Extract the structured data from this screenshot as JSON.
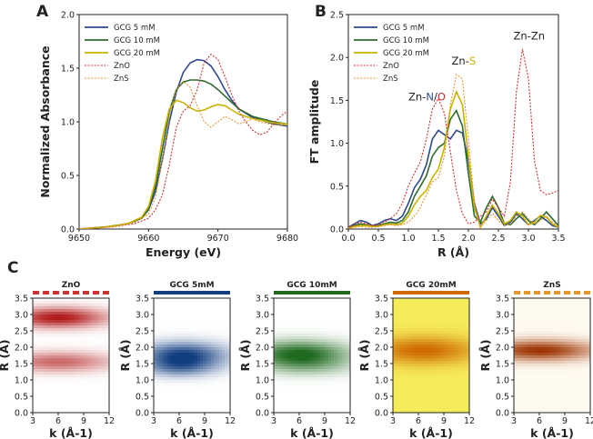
{
  "panels": {
    "a": "A",
    "b": "B",
    "c": "C"
  },
  "colors": {
    "gcg5": "#2c4a8c",
    "gcg10": "#2e6b2e",
    "gcg20": "#c9b300",
    "zno": "#d03030",
    "zns": "#e8962e"
  },
  "chart_data": [
    {
      "type": "line",
      "id": "A",
      "title": "",
      "xlabel": "Energy (eV)",
      "ylabel": "Normalized Absorbance",
      "xlim": [
        9650,
        9680
      ],
      "ylim": [
        0.0,
        2.0
      ],
      "xticks": [
        "9650",
        "9660",
        "9670",
        "9680"
      ],
      "yticks": [
        "0.0",
        "0.5",
        "1.0",
        "1.5",
        "2.0"
      ],
      "legend": [
        "GCG  5 mM",
        "GCG 10 mM",
        "GCG 20 mM",
        "ZnO",
        "ZnS"
      ],
      "series": [
        {
          "name": "GCG  5 mM",
          "style": "solid",
          "x": [
            9650,
            9654,
            9657,
            9659,
            9660,
            9661,
            9662,
            9663,
            9664,
            9665,
            9666,
            9667,
            9668,
            9669,
            9670,
            9671,
            9672,
            9673,
            9675,
            9678,
            9680
          ],
          "y": [
            0.0,
            0.02,
            0.05,
            0.1,
            0.18,
            0.35,
            0.65,
            1.0,
            1.28,
            1.46,
            1.55,
            1.58,
            1.57,
            1.52,
            1.42,
            1.3,
            1.2,
            1.12,
            1.04,
            0.98,
            0.96
          ]
        },
        {
          "name": "GCG 10 mM",
          "style": "solid",
          "x": [
            9650,
            9654,
            9657,
            9659,
            9660,
            9661,
            9662,
            9663,
            9664,
            9665,
            9666,
            9667,
            9668,
            9669,
            9670,
            9671,
            9672,
            9673,
            9675,
            9678,
            9680
          ],
          "y": [
            0.0,
            0.02,
            0.05,
            0.1,
            0.19,
            0.4,
            0.75,
            1.1,
            1.3,
            1.37,
            1.39,
            1.39,
            1.38,
            1.35,
            1.3,
            1.24,
            1.18,
            1.12,
            1.05,
            1.0,
            0.98
          ]
        },
        {
          "name": "GCG 20 mM",
          "style": "solid",
          "x": [
            9650,
            9654,
            9657,
            9659,
            9660,
            9661,
            9662,
            9663,
            9664,
            9665,
            9666,
            9667,
            9668,
            9669,
            9670,
            9671,
            9672,
            9673,
            9675,
            9678,
            9680
          ],
          "y": [
            0.0,
            0.02,
            0.05,
            0.11,
            0.21,
            0.45,
            0.85,
            1.12,
            1.2,
            1.18,
            1.13,
            1.1,
            1.11,
            1.14,
            1.16,
            1.15,
            1.11,
            1.07,
            1.03,
            0.99,
            0.98
          ]
        },
        {
          "name": "ZnO",
          "style": "dotted",
          "x": [
            9650,
            9655,
            9658,
            9660,
            9661,
            9662,
            9663,
            9664,
            9665,
            9666,
            9667,
            9668,
            9669,
            9670,
            9671,
            9672,
            9673,
            9674,
            9675,
            9676,
            9677,
            9678,
            9679,
            9680
          ],
          "y": [
            0.0,
            0.02,
            0.05,
            0.1,
            0.18,
            0.32,
            0.6,
            0.95,
            1.1,
            1.15,
            1.3,
            1.55,
            1.63,
            1.58,
            1.42,
            1.25,
            1.1,
            1.0,
            0.92,
            0.88,
            0.9,
            0.98,
            1.05,
            1.1
          ]
        },
        {
          "name": "ZnS",
          "style": "dotted",
          "x": [
            9650,
            9655,
            9658,
            9660,
            9661,
            9662,
            9663,
            9664,
            9665,
            9666,
            9667,
            9668,
            9669,
            9670,
            9671,
            9672,
            9673,
            9674,
            9675,
            9676,
            9678,
            9680
          ],
          "y": [
            0.0,
            0.02,
            0.06,
            0.14,
            0.3,
            0.65,
            1.05,
            1.3,
            1.38,
            1.32,
            1.15,
            1.0,
            0.95,
            1.0,
            1.05,
            1.02,
            0.98,
            1.0,
            1.03,
            1.0,
            0.97,
            0.97
          ]
        }
      ]
    },
    {
      "type": "line",
      "id": "B",
      "title": "",
      "xlabel": "R (Å)",
      "ylabel": "FT amplitude",
      "xlim": [
        0.0,
        3.5
      ],
      "ylim": [
        0.0,
        2.5
      ],
      "xticks": [
        "0.0",
        "0.5",
        "1.0",
        "1.5",
        "2.0",
        "2.5",
        "3.0",
        "3.5"
      ],
      "yticks": [
        "0.0",
        "0.5",
        "1.0",
        "1.5",
        "2.0",
        "2.5"
      ],
      "legend": [
        "GCG  5 mM",
        "GCG 10 mM",
        "GCG 20 mM",
        "ZnO",
        "ZnS"
      ],
      "annotations": [
        {
          "parts": [
            "Zn-",
            "N",
            "/",
            "O"
          ],
          "x": 1.0,
          "y": 1.5
        },
        {
          "parts": [
            "Zn-",
            "S"
          ],
          "x": 1.72,
          "y": 1.92
        },
        {
          "parts": [
            "Zn-Zn"
          ],
          "x": 2.75,
          "y": 2.21
        }
      ],
      "series": [
        {
          "name": "GCG  5 mM",
          "style": "solid",
          "x": [
            0.0,
            0.1,
            0.2,
            0.3,
            0.4,
            0.5,
            0.6,
            0.7,
            0.8,
            0.9,
            1.0,
            1.1,
            1.2,
            1.3,
            1.4,
            1.5,
            1.6,
            1.7,
            1.8,
            1.9,
            2.0,
            2.1,
            2.2,
            2.3,
            2.4,
            2.5,
            2.6,
            2.7,
            2.8,
            2.9,
            3.0,
            3.1,
            3.2,
            3.3,
            3.4,
            3.5
          ],
          "y": [
            0.02,
            0.06,
            0.1,
            0.08,
            0.04,
            0.06,
            0.1,
            0.12,
            0.1,
            0.15,
            0.3,
            0.48,
            0.58,
            0.75,
            1.05,
            1.15,
            1.1,
            1.05,
            1.15,
            1.12,
            0.8,
            0.3,
            0.06,
            0.12,
            0.25,
            0.15,
            0.04,
            0.08,
            0.18,
            0.12,
            0.05,
            0.1,
            0.15,
            0.1,
            0.04,
            0.02
          ]
        },
        {
          "name": "GCG 10 mM",
          "style": "solid",
          "x": [
            0.0,
            0.1,
            0.2,
            0.3,
            0.4,
            0.5,
            0.6,
            0.7,
            0.8,
            0.9,
            1.0,
            1.1,
            1.2,
            1.3,
            1.4,
            1.5,
            1.6,
            1.7,
            1.8,
            1.9,
            2.0,
            2.1,
            2.2,
            2.3,
            2.4,
            2.5,
            2.6,
            2.7,
            2.8,
            2.9,
            3.0,
            3.1,
            3.2,
            3.3,
            3.4,
            3.5
          ],
          "y": [
            0.02,
            0.04,
            0.06,
            0.05,
            0.03,
            0.04,
            0.06,
            0.08,
            0.07,
            0.1,
            0.2,
            0.38,
            0.5,
            0.62,
            0.85,
            0.95,
            1.0,
            1.28,
            1.38,
            1.2,
            0.65,
            0.15,
            0.08,
            0.25,
            0.38,
            0.25,
            0.06,
            0.05,
            0.12,
            0.18,
            0.1,
            0.05,
            0.12,
            0.2,
            0.12,
            0.04
          ]
        },
        {
          "name": "GCG 20 mM",
          "style": "solid",
          "x": [
            0.0,
            0.1,
            0.2,
            0.3,
            0.4,
            0.5,
            0.6,
            0.7,
            0.8,
            0.9,
            1.0,
            1.1,
            1.2,
            1.3,
            1.4,
            1.5,
            1.6,
            1.7,
            1.8,
            1.9,
            2.0,
            2.1,
            2.2,
            2.3,
            2.4,
            2.5,
            2.6,
            2.7,
            2.8,
            2.9,
            3.0,
            3.1,
            3.2,
            3.3,
            3.4,
            3.5
          ],
          "y": [
            0.01,
            0.03,
            0.04,
            0.04,
            0.03,
            0.03,
            0.05,
            0.06,
            0.05,
            0.07,
            0.15,
            0.28,
            0.38,
            0.45,
            0.6,
            0.7,
            0.95,
            1.4,
            1.6,
            1.45,
            0.85,
            0.25,
            0.02,
            0.15,
            0.28,
            0.18,
            0.06,
            0.1,
            0.2,
            0.15,
            0.05,
            0.08,
            0.16,
            0.14,
            0.06,
            0.02
          ]
        },
        {
          "name": "ZnO",
          "style": "dotted",
          "x": [
            0.0,
            0.1,
            0.2,
            0.3,
            0.4,
            0.5,
            0.6,
            0.7,
            0.8,
            0.9,
            1.0,
            1.1,
            1.2,
            1.3,
            1.4,
            1.5,
            1.6,
            1.7,
            1.8,
            1.9,
            2.0,
            2.1,
            2.2,
            2.3,
            2.4,
            2.5,
            2.6,
            2.7,
            2.8,
            2.9,
            3.0,
            3.1,
            3.2,
            3.3,
            3.4,
            3.5
          ],
          "y": [
            0.02,
            0.05,
            0.08,
            0.06,
            0.04,
            0.05,
            0.08,
            0.12,
            0.18,
            0.3,
            0.5,
            0.65,
            0.78,
            1.05,
            1.4,
            1.52,
            1.35,
            0.9,
            0.45,
            0.18,
            0.06,
            0.08,
            0.15,
            0.2,
            0.35,
            0.25,
            0.15,
            0.55,
            1.6,
            2.1,
            1.75,
            0.8,
            0.45,
            0.4,
            0.42,
            0.45
          ]
        },
        {
          "name": "ZnS",
          "style": "dotted",
          "x": [
            0.0,
            0.1,
            0.2,
            0.3,
            0.4,
            0.5,
            0.6,
            0.7,
            0.8,
            0.9,
            1.0,
            1.1,
            1.2,
            1.3,
            1.4,
            1.5,
            1.6,
            1.7,
            1.8,
            1.9,
            2.0,
            2.1,
            2.2,
            2.3,
            2.4,
            2.5,
            2.6,
            2.7,
            2.8,
            2.9,
            3.0,
            3.1,
            3.2,
            3.3,
            3.4,
            3.5
          ],
          "y": [
            0.01,
            0.02,
            0.03,
            0.02,
            0.02,
            0.03,
            0.04,
            0.05,
            0.04,
            0.05,
            0.08,
            0.15,
            0.25,
            0.4,
            0.55,
            0.6,
            0.85,
            1.45,
            1.8,
            1.75,
            1.05,
            0.3,
            0.02,
            0.1,
            0.18,
            0.1,
            0.04,
            0.06,
            0.15,
            0.2,
            0.12,
            0.06,
            0.1,
            0.15,
            0.08,
            0.03
          ]
        }
      ]
    },
    {
      "type": "heatmap",
      "id": "C",
      "xlabel": "k (Å-1)",
      "ylabel": "R (Å)",
      "xlim": [
        3,
        12
      ],
      "ylim": [
        0.0,
        3.5
      ],
      "xticks": [
        "3",
        "6",
        "9",
        "12"
      ],
      "yticks": [
        "0.0",
        "0.5",
        "1.0",
        "1.5",
        "2.0",
        "2.5",
        "3.0",
        "3.5"
      ],
      "maps": [
        {
          "title": "ZnO",
          "band_style": "dashed",
          "colors": [
            "#ffffff",
            "#b01818"
          ],
          "peaks": [
            {
              "r": 2.9,
              "k": 6.0,
              "amp": 1.0,
              "sr": 0.22,
              "sk": 4.0
            },
            {
              "r": 1.55,
              "k": 6.0,
              "amp": 0.65,
              "sr": 0.22,
              "sk": 4.5
            }
          ]
        },
        {
          "title": "GCG 5mM",
          "band_style": "solid",
          "colors": [
            "#ffffff",
            "#123e80"
          ],
          "peaks": [
            {
              "r": 1.75,
              "k": 6.5,
              "amp": 1.0,
              "sr": 0.28,
              "sk": 3.5
            },
            {
              "r": 1.35,
              "k": 6.0,
              "amp": 0.45,
              "sr": 0.2,
              "sk": 3.0
            }
          ]
        },
        {
          "title": "GCG 10mM",
          "band_style": "solid",
          "colors": [
            "#ffffff",
            "#1f6a1f"
          ],
          "peaks": [
            {
              "r": 1.8,
              "k": 6.0,
              "amp": 1.0,
              "sr": 0.28,
              "sk": 4.0
            },
            {
              "r": 1.4,
              "k": 7.0,
              "amp": 0.3,
              "sr": 0.22,
              "sk": 4.0
            }
          ]
        },
        {
          "title": "GCG 20mM",
          "band_style": "solid",
          "colors": [
            "#f6ec5a",
            "#cf6a00"
          ],
          "peaks": [
            {
              "r": 1.9,
              "k": 6.5,
              "amp": 1.0,
              "sr": 0.3,
              "sk": 4.5
            }
          ]
        },
        {
          "title": "ZnS",
          "band_style": "dashed",
          "colors": [
            "#fffaf0",
            "#9c3200"
          ],
          "peaks": [
            {
              "r": 1.9,
              "k": 6.0,
              "amp": 1.0,
              "sr": 0.22,
              "sk": 4.5
            }
          ]
        }
      ]
    }
  ]
}
